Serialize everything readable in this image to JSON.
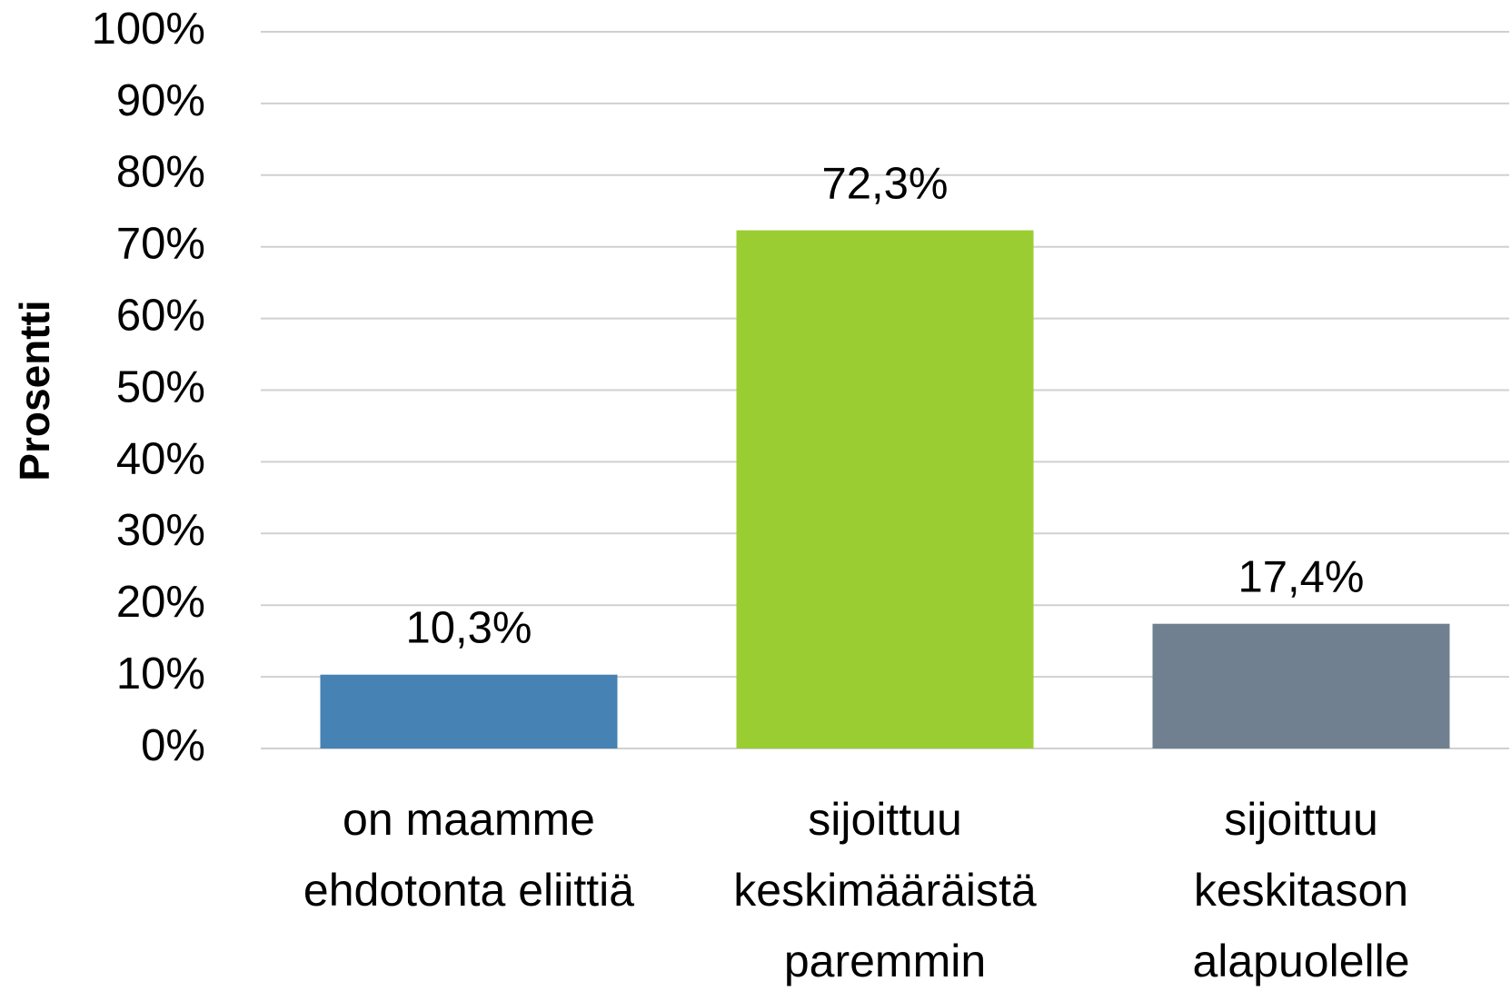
{
  "chart_data": {
    "type": "bar",
    "ylabel": "Prosentti",
    "categories": [
      [
        "on maamme",
        "ehdotonta eliittiä"
      ],
      [
        "sijoittuu",
        "keskimääräistä",
        "paremmin"
      ],
      [
        "sijoittuu",
        "keskitason",
        "alapuolelle"
      ]
    ],
    "values": [
      10.3,
      72.3,
      17.4
    ],
    "value_labels": [
      "10,3%",
      "72,3%",
      "17,4%"
    ],
    "colors": [
      "#4682b4",
      "#9acd32",
      "#708090"
    ],
    "ylim": [
      0,
      100
    ],
    "yticks": [
      {
        "value": 0,
        "label": "0%"
      },
      {
        "value": 10,
        "label": "10%"
      },
      {
        "value": 20,
        "label": "20%"
      },
      {
        "value": 30,
        "label": "30%"
      },
      {
        "value": 40,
        "label": "40%"
      },
      {
        "value": 50,
        "label": "50%"
      },
      {
        "value": 60,
        "label": "60%"
      },
      {
        "value": 70,
        "label": "70%"
      },
      {
        "value": 80,
        "label": "80%"
      },
      {
        "value": 90,
        "label": "90%"
      },
      {
        "value": 100,
        "label": "100%"
      }
    ],
    "grid": true
  }
}
